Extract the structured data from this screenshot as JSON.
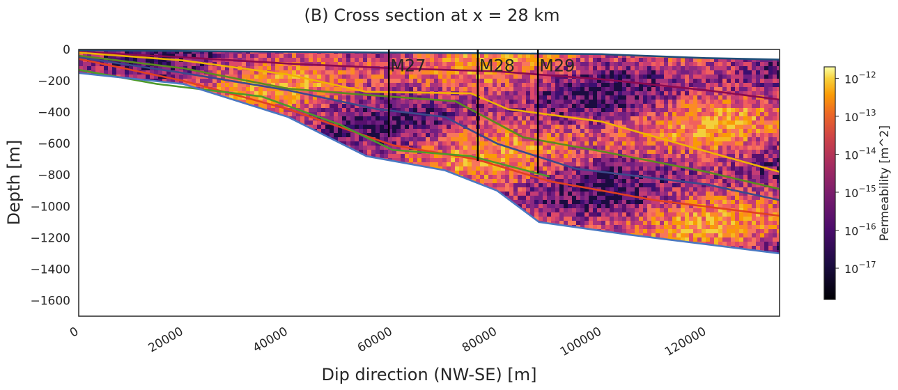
{
  "chart_data": {
    "type": "heatmap",
    "title": "(B) Cross section at x = 28 km",
    "xlabel": "Dip direction (NW-SE) [m]",
    "ylabel": "Depth [m]",
    "xlim": [
      0,
      134000
    ],
    "ylim": [
      -1700,
      0
    ],
    "xticks": [
      0,
      20000,
      40000,
      60000,
      80000,
      100000,
      120000
    ],
    "yticks": [
      0,
      -200,
      -400,
      -600,
      -800,
      -1000,
      -1200,
      -1400,
      -1600
    ],
    "colorbar": {
      "label": "Permeability [m^2]",
      "scale": "log",
      "colormap": "inferno",
      "range": [
        1.5e-18,
        2e-12
      ],
      "ticks": [
        "10^-12",
        "10^-13",
        "10^-14",
        "10^-15",
        "10^-16",
        "10^-17"
      ]
    },
    "wells": [
      {
        "label": "M27",
        "x": 59300,
        "depth_bottom": -560
      },
      {
        "label": "M28",
        "x": 76300,
        "depth_bottom": -710
      },
      {
        "label": "M29",
        "x": 87800,
        "depth_bottom": -790
      }
    ],
    "surfaces": [
      {
        "color": "#1f4e79",
        "points": [
          [
            0,
            -5
          ],
          [
            20000,
            -10
          ],
          [
            40000,
            -15
          ],
          [
            60000,
            -20
          ],
          [
            80000,
            -25
          ],
          [
            100000,
            -30
          ],
          [
            120000,
            -55
          ],
          [
            134000,
            -65
          ]
        ]
      },
      {
        "color": "#8b0a50",
        "points": [
          [
            0,
            -15
          ],
          [
            20000,
            -50
          ],
          [
            40000,
            -90
          ],
          [
            60000,
            -120
          ],
          [
            80000,
            -140
          ],
          [
            100000,
            -190
          ],
          [
            120000,
            -260
          ],
          [
            134000,
            -320
          ]
        ]
      },
      {
        "color": "#f0b400",
        "points": [
          [
            0,
            -20
          ],
          [
            20000,
            -70
          ],
          [
            40000,
            -160
          ],
          [
            55000,
            -270
          ],
          [
            75000,
            -280
          ],
          [
            82000,
            -380
          ],
          [
            100000,
            -460
          ],
          [
            120000,
            -650
          ],
          [
            134000,
            -780
          ]
        ]
      },
      {
        "color": "#5b8c1e",
        "points": [
          [
            0,
            -40
          ],
          [
            20000,
            -120
          ],
          [
            40000,
            -250
          ],
          [
            55000,
            -290
          ],
          [
            72000,
            -330
          ],
          [
            85000,
            -560
          ],
          [
            100000,
            -650
          ],
          [
            120000,
            -780
          ],
          [
            134000,
            -890
          ]
        ]
      },
      {
        "color": "#3b4a8c",
        "points": [
          [
            0,
            -50
          ],
          [
            20000,
            -150
          ],
          [
            40000,
            -260
          ],
          [
            57000,
            -380
          ],
          [
            70000,
            -430
          ],
          [
            80000,
            -600
          ],
          [
            95000,
            -760
          ],
          [
            120000,
            -860
          ],
          [
            134000,
            -960
          ]
        ]
      },
      {
        "color": "#e2401f",
        "points": [
          [
            0,
            -60
          ],
          [
            20000,
            -200
          ],
          [
            40000,
            -380
          ],
          [
            60000,
            -610
          ],
          [
            76000,
            -700
          ],
          [
            90000,
            -840
          ],
          [
            110000,
            -960
          ],
          [
            134000,
            -1060
          ]
        ]
      },
      {
        "color": "#4c9a2a",
        "points": [
          [
            0,
            -130
          ],
          [
            15000,
            -220
          ],
          [
            35000,
            -300
          ],
          [
            50000,
            -480
          ],
          [
            60000,
            -640
          ],
          [
            75000,
            -680
          ],
          [
            90000,
            -810
          ]
        ]
      },
      {
        "color": "#4a78c2",
        "points": [
          [
            0,
            -150
          ],
          [
            20000,
            -220
          ],
          [
            40000,
            -430
          ],
          [
            55000,
            -680
          ],
          [
            70000,
            -770
          ],
          [
            80000,
            -900
          ],
          [
            88000,
            -1100
          ],
          [
            105000,
            -1180
          ],
          [
            134000,
            -1300
          ]
        ]
      }
    ]
  },
  "colors": {
    "axis": "#262626",
    "background": "#ffffff"
  }
}
